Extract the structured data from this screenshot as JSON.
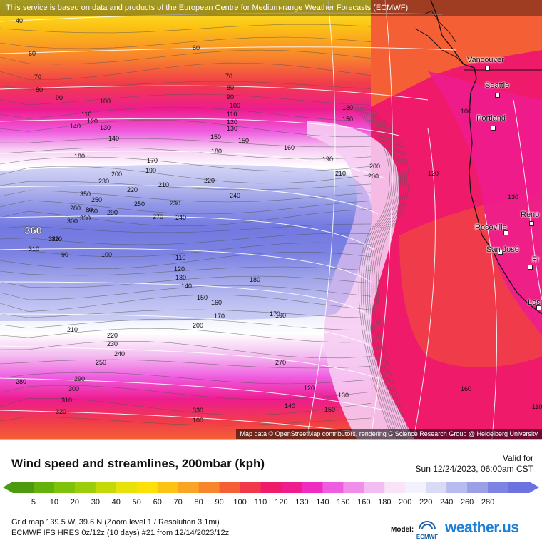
{
  "banner": "This service is based on data and products of the European Centre for Medium-range Weather Forecasts (ECMWF)",
  "attribution": "Map data © OpenStreetMap contributors, rendering GIScience Research Group @ Heidelberg University",
  "big_label": "360",
  "cities": [
    "Vancouver",
    "Seattle",
    "Portland",
    "Reno",
    "Roseville",
    "San José",
    "Fr",
    "Los"
  ],
  "contour_labels": [
    "40",
    "60",
    "60",
    "70",
    "70",
    "80",
    "80",
    "90",
    "90",
    "100",
    "100",
    "100",
    "110",
    "110",
    "120",
    "120",
    "130",
    "130",
    "130",
    "140",
    "140",
    "150",
    "150",
    "150",
    "160",
    "170",
    "170",
    "180",
    "180",
    "190",
    "190",
    "200",
    "200",
    "200",
    "210",
    "210",
    "220",
    "220",
    "230",
    "230",
    "240",
    "240",
    "250",
    "250",
    "270",
    "280",
    "280",
    "290",
    "300",
    "310",
    "320",
    "330",
    "340",
    "350",
    "80",
    "90",
    "100",
    "110",
    "120",
    "130",
    "140",
    "150",
    "160",
    "170",
    "180",
    "190",
    "200",
    "210",
    "220",
    "230",
    "240",
    "250",
    "270",
    "280",
    "290",
    "300",
    "310",
    "320",
    "330",
    "100",
    "120",
    "130",
    "160",
    "110",
    "140",
    "150",
    "120",
    "130"
  ],
  "title": "Wind speed and streamlines, 200mbar (kph)",
  "valid_label": "Valid for",
  "valid_time": "Sun 12/24/2023, 06:00am CST",
  "legend": {
    "ticks": [
      "5",
      "10",
      "20",
      "30",
      "40",
      "50",
      "60",
      "70",
      "80",
      "90",
      "100",
      "110",
      "120",
      "130",
      "140",
      "150",
      "160",
      "180",
      "200",
      "220",
      "240",
      "260",
      "280"
    ],
    "colors": [
      "#4c9a0e",
      "#63b10a",
      "#7fc20a",
      "#9ccd0a",
      "#c3d908",
      "#e6e20a",
      "#fde00a",
      "#fcc314",
      "#fba423",
      "#f8842c",
      "#f45f36",
      "#f0384a",
      "#ef1a6a",
      "#ee1c8f",
      "#ef2cc0",
      "#ee5ce0",
      "#f08ee9",
      "#f4bdf1",
      "#f9e4f7",
      "#f2f2ff",
      "#d9dbf5",
      "#b8bbee",
      "#9a9fe8",
      "#7d83e3",
      "#6c73e0"
    ]
  },
  "info": {
    "grid": "Grid map 139.5 W, 39.6 N (Zoom level 1 / Resolution 3.1mi)",
    "model": "ECMWF IFS HRES 0z/12z (10 days) #21 from 12/14/2023/12z",
    "model_label": "Model:",
    "model_logo": "ECMWF",
    "brand": "weather.us"
  }
}
